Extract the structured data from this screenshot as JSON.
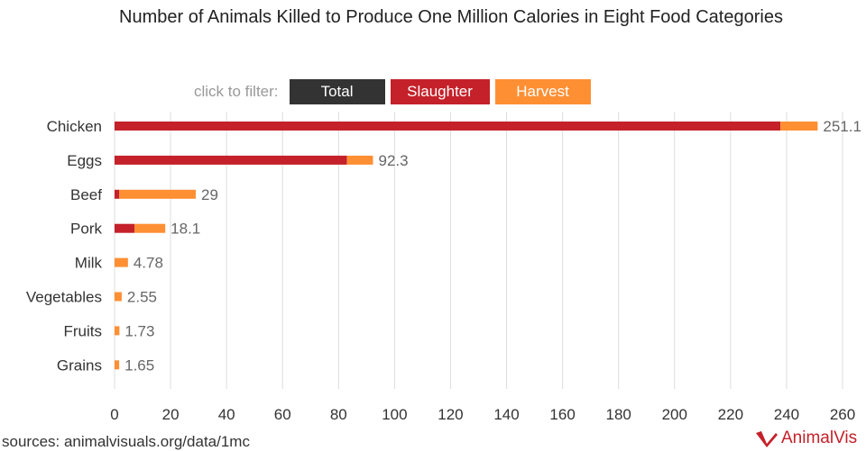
{
  "chart_data": {
    "type": "bar",
    "orientation": "horizontal",
    "stacked": true,
    "title": "Number of Animals Killed to Produce One Million Calories in Eight Food Categories",
    "categories": [
      "Chicken",
      "Eggs",
      "Beef",
      "Pork",
      "Milk",
      "Vegetables",
      "Fruits",
      "Grains"
    ],
    "series": [
      {
        "name": "Slaughter",
        "color": "#c4212a",
        "values": [
          237.8,
          83,
          1.7,
          7.1,
          0,
          0,
          0,
          0
        ]
      },
      {
        "name": "Harvest",
        "color": "#ff8f33",
        "values": [
          13.3,
          9.3,
          27.3,
          11,
          4.78,
          2.55,
          1.73,
          1.65
        ]
      }
    ],
    "totals": [
      "251.1",
      "92.3",
      "29",
      "18.1",
      "4.78",
      "2.55",
      "1.73",
      "1.65"
    ],
    "xlim": [
      0,
      260
    ],
    "xticks": [
      0,
      20,
      40,
      60,
      80,
      100,
      120,
      140,
      160,
      180,
      200,
      220,
      240,
      260
    ],
    "grid": true
  },
  "filter": {
    "label": "click to filter:",
    "buttons": [
      {
        "label": "Total",
        "color": "#333333"
      },
      {
        "label": "Slaughter",
        "color": "#c4212a"
      },
      {
        "label": "Harvest",
        "color": "#ff8f33"
      }
    ]
  },
  "source": "sources: animalvisuals.org/data/1mc",
  "logo": "AnimalVis"
}
